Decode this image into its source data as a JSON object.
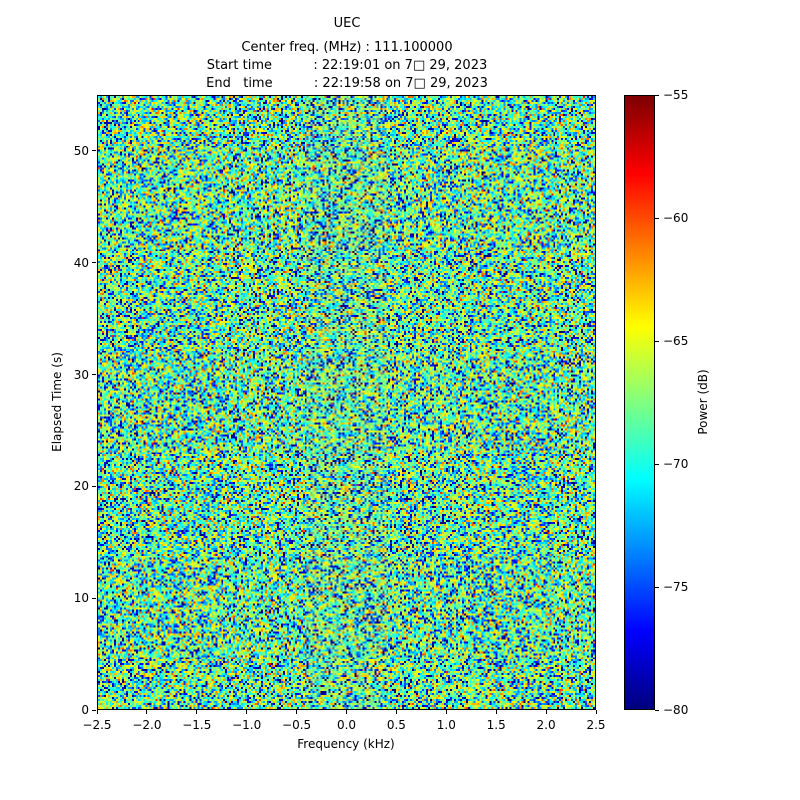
{
  "chart_data": {
    "type": "heatmap",
    "title": "UEC",
    "annotations": [
      "Center freq. (MHz) : 111.100000",
      "Start time          : 22:19:01 on 7□ 29, 2023",
      "End   time          : 22:19:58 on 7□ 29, 2023"
    ],
    "xlabel": "Frequency (kHz)",
    "ylabel": "Elapsed Time (s)",
    "xlim": [
      -2.5,
      2.5
    ],
    "ylim": [
      0,
      55
    ],
    "grid": false,
    "x_ticks": [
      {
        "v": -2.5,
        "label": "−2.5"
      },
      {
        "v": -2.0,
        "label": "−2.0"
      },
      {
        "v": -1.5,
        "label": "−1.5"
      },
      {
        "v": -1.0,
        "label": "−1.0"
      },
      {
        "v": -0.5,
        "label": "−0.5"
      },
      {
        "v": 0.0,
        "label": "0.0"
      },
      {
        "v": 0.5,
        "label": "0.5"
      },
      {
        "v": 1.0,
        "label": "1.0"
      },
      {
        "v": 1.5,
        "label": "1.5"
      },
      {
        "v": 2.0,
        "label": "2.0"
      },
      {
        "v": 2.5,
        "label": "2.5"
      }
    ],
    "y_ticks": [
      {
        "v": 0,
        "label": "0"
      },
      {
        "v": 10,
        "label": "10"
      },
      {
        "v": 20,
        "label": "20"
      },
      {
        "v": 30,
        "label": "30"
      },
      {
        "v": 40,
        "label": "40"
      },
      {
        "v": 50,
        "label": "50"
      }
    ],
    "colorbar": {
      "label": "Power (dB)",
      "position": "right",
      "colormap": "jet",
      "vmin": -80,
      "vmax": -55,
      "ticks": [
        {
          "v": -55,
          "label": "−55"
        },
        {
          "v": -60,
          "label": "−60"
        },
        {
          "v": -65,
          "label": "−65"
        },
        {
          "v": -70,
          "label": "−70"
        },
        {
          "v": -75,
          "label": "−75"
        },
        {
          "v": -80,
          "label": "−80"
        }
      ]
    },
    "noise": {
      "description": "featureless speckle noise floor; per-bin power ~ exponential distribution rendered in dB",
      "base_db": -67,
      "median_db": -68.6,
      "seed": 20230729,
      "cols": 250,
      "rows": 308
    }
  }
}
